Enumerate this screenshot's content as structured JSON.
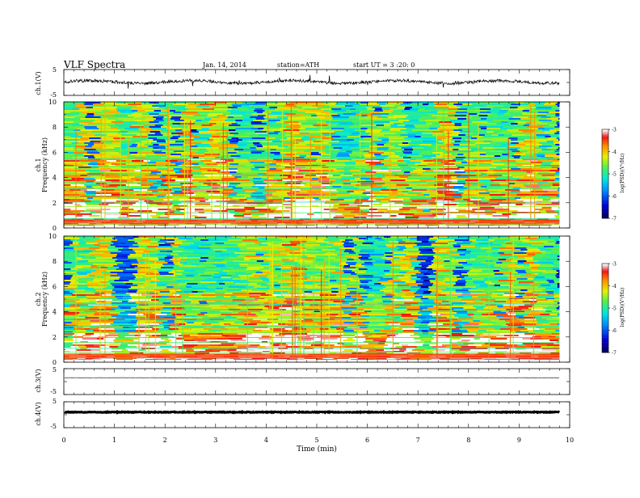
{
  "header": {
    "title": "VLF Spectra",
    "date": "Jan. 14, 2014",
    "station": "station=ATH",
    "start": "start UT =  3 :20: 0"
  },
  "chart_data": [
    {
      "type": "line",
      "ylabel": "ch.1(V)",
      "ylim": [
        -5,
        5
      ],
      "yticks": [
        "5",
        "-5"
      ],
      "baseline": 0.2,
      "noise_amplitude": 0.6,
      "spike_amplitude": 3.5
    },
    {
      "type": "heatmap",
      "ylabel": "ch.1",
      "ylabel2": "Frequency (kHz)",
      "ylim": [
        0,
        10
      ],
      "yticks": [
        "0",
        "2",
        "4",
        "6",
        "8",
        "10"
      ],
      "colorbar": {
        "label": "log(PSD)(V²/Hz)",
        "range": [
          -7,
          -3
        ],
        "ticks": [
          "-3",
          "-4",
          "-5",
          "-6",
          "-7"
        ]
      }
    },
    {
      "type": "heatmap",
      "ylabel": "ch.2",
      "ylabel2": "Frequency (kHz)",
      "ylim": [
        0,
        10
      ],
      "yticks": [
        "0",
        "2",
        "4",
        "6",
        "8",
        "10"
      ],
      "colorbar": {
        "label": "log(PSD)(V²/Hz)",
        "range": [
          -7,
          -3
        ],
        "ticks": [
          "-3",
          "-4",
          "-5",
          "-6",
          "-7"
        ]
      }
    },
    {
      "type": "line",
      "ylabel": "ch.3(V)",
      "ylim": [
        -5,
        5
      ],
      "yticks": [
        "5",
        "-5"
      ],
      "baseline": 1.5,
      "noise_amplitude": 0.05
    },
    {
      "type": "line",
      "ylabel": "ch.4(V)",
      "ylim": [
        -5,
        5
      ],
      "yticks": [
        "5",
        "-5"
      ],
      "baseline": 1.0,
      "noise_amplitude": 0.15
    }
  ],
  "x_axis": {
    "xlabel": "Time (min)",
    "xlim": [
      0,
      10
    ],
    "ticks": [
      "0",
      "1",
      "2",
      "3",
      "4",
      "5",
      "6",
      "7",
      "8",
      "9",
      "10"
    ],
    "data_end": 9.8
  }
}
